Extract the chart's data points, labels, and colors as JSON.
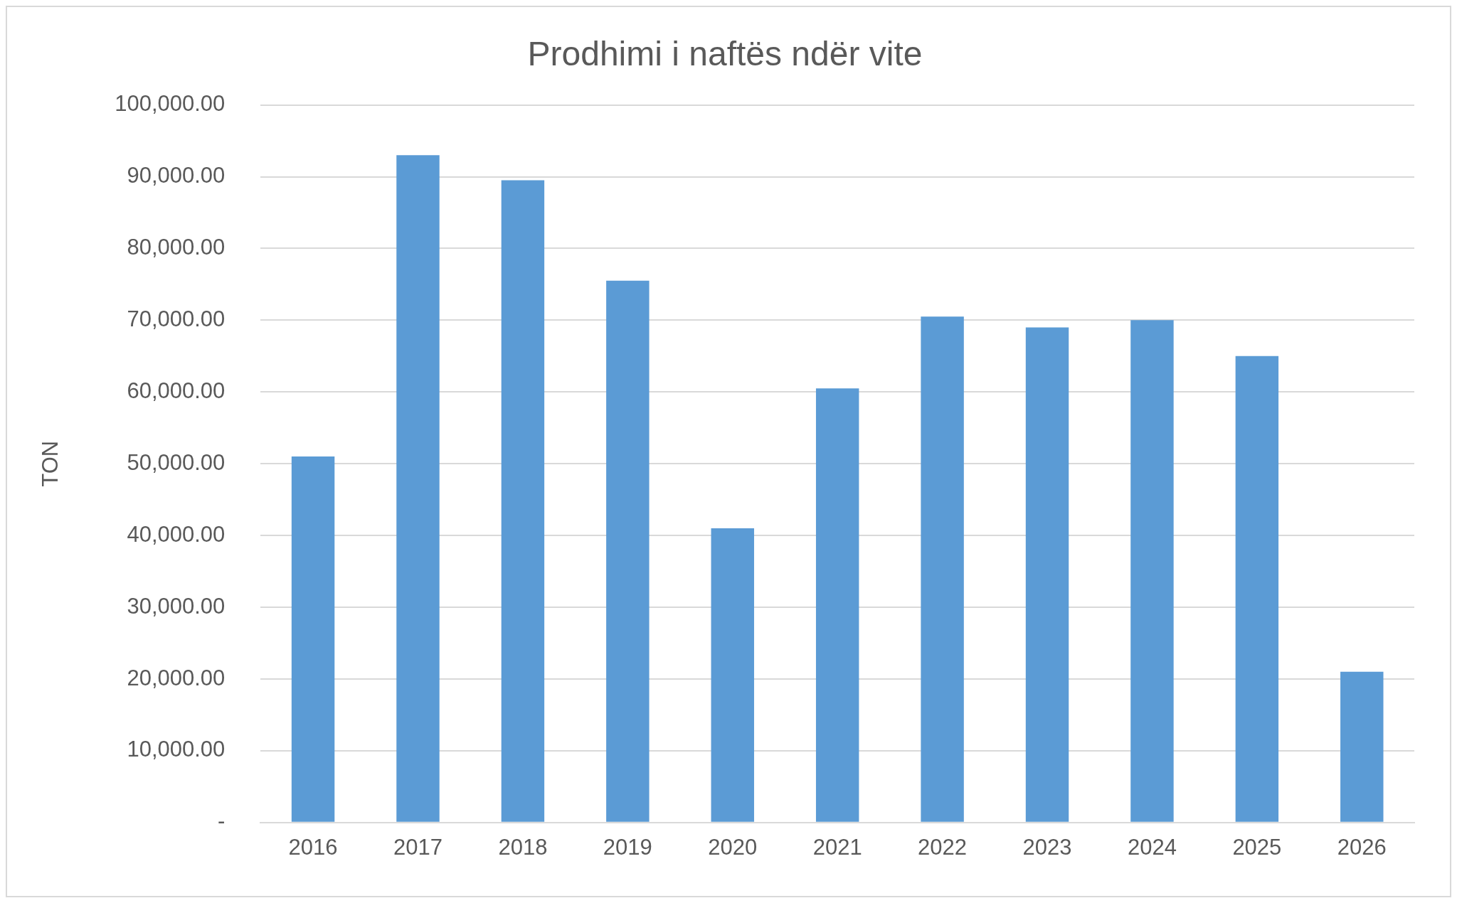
{
  "chart_data": {
    "type": "bar",
    "title": "Prodhimi i naftës ndër vite",
    "ylabel": "TON",
    "categories": [
      "2016",
      "2017",
      "2018",
      "2019",
      "2020",
      "2021",
      "2022",
      "2023",
      "2024",
      "2025",
      "2026"
    ],
    "values": [
      51000,
      93000,
      89500,
      75500,
      41000,
      60500,
      70500,
      69000,
      70000,
      65000,
      21000
    ],
    "color": "#5b9bd5",
    "ylim": [
      0,
      100000
    ],
    "yticks": [
      {
        "value": 0,
        "label": "-"
      },
      {
        "value": 10000,
        "label": "10,000.00"
      },
      {
        "value": 20000,
        "label": "20,000.00"
      },
      {
        "value": 30000,
        "label": "30,000.00"
      },
      {
        "value": 40000,
        "label": "40,000.00"
      },
      {
        "value": 50000,
        "label": "50,000.00"
      },
      {
        "value": 60000,
        "label": "60,000.00"
      },
      {
        "value": 70000,
        "label": "70,000.00"
      },
      {
        "value": 80000,
        "label": "80,000.00"
      },
      {
        "value": 90000,
        "label": "90,000.00"
      },
      {
        "value": 100000,
        "label": "100,000.00"
      }
    ],
    "grid": "y",
    "legend": false
  }
}
